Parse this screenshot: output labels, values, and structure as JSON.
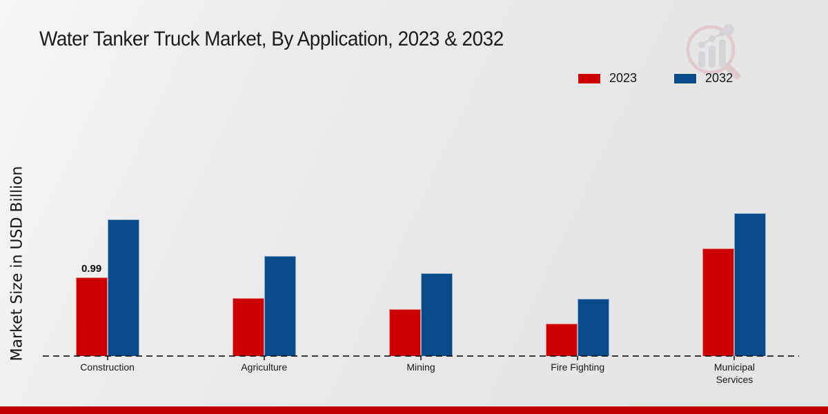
{
  "header": {
    "title": "Water Tanker Truck Market, By Application, 2023 & 2032"
  },
  "axes": {
    "ylabel": "Market Size in USD Billion"
  },
  "legend": [
    {
      "label": "2023",
      "color": "#cc0000"
    },
    {
      "label": "2032",
      "color": "#084b8a"
    }
  ],
  "chart_data": {
    "type": "bar",
    "title": "Water Tanker Truck Market, By Application, 2023 & 2032",
    "ylabel": "Market Size in USD Billion",
    "xlabel": "",
    "categories": [
      "Construction",
      "Agriculture",
      "Mining",
      "Fire Fighting",
      "Municipal Services"
    ],
    "series": [
      {
        "name": "2023",
        "color": "#cc0000",
        "values": [
          0.99,
          0.73,
          0.59,
          0.41,
          1.36
        ]
      },
      {
        "name": "2032",
        "color": "#084b8a",
        "values": [
          1.72,
          1.26,
          1.04,
          0.72,
          1.8
        ]
      }
    ],
    "data_labels": [
      {
        "series_index": 0,
        "category_index": 0,
        "text": "0.99"
      }
    ],
    "ylim": [
      0,
      2.0
    ],
    "grid": false,
    "baseline_style": "dashed",
    "legend_position": "top-right"
  },
  "colors": {
    "series_2023": "#cc0000",
    "series_2032": "#084b8a",
    "footer_bar": "#c00000",
    "background": "#e9e9ea",
    "axis_dash": "#3c3c3c"
  }
}
